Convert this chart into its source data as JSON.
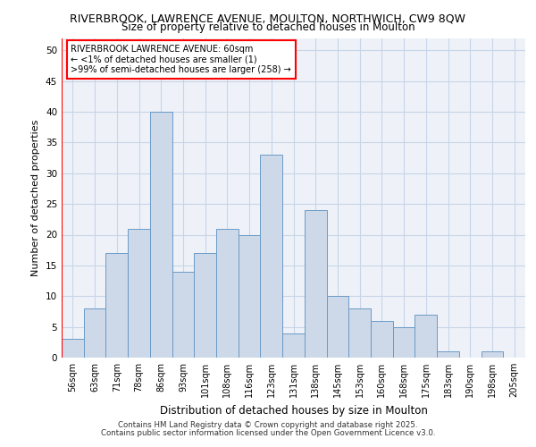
{
  "title_line1": "RIVERBROOK, LAWRENCE AVENUE, MOULTON, NORTHWICH, CW9 8QW",
  "title_line2": "Size of property relative to detached houses in Moulton",
  "xlabel": "Distribution of detached houses by size in Moulton",
  "ylabel": "Number of detached properties",
  "categories": [
    "56sqm",
    "63sqm",
    "71sqm",
    "78sqm",
    "86sqm",
    "93sqm",
    "101sqm",
    "108sqm",
    "116sqm",
    "123sqm",
    "131sqm",
    "138sqm",
    "145sqm",
    "153sqm",
    "160sqm",
    "168sqm",
    "175sqm",
    "183sqm",
    "190sqm",
    "198sqm",
    "205sqm"
  ],
  "values": [
    3,
    8,
    17,
    21,
    40,
    14,
    17,
    21,
    20,
    33,
    4,
    24,
    10,
    8,
    6,
    5,
    7,
    1,
    0,
    1,
    0
  ],
  "bar_color_fill": "#cdd8e8",
  "bar_color_edge": "#6b9bc7",
  "ylim": [
    0,
    52
  ],
  "yticks": [
    0,
    5,
    10,
    15,
    20,
    25,
    30,
    35,
    40,
    45,
    50
  ],
  "grid_color": "#c8d4e8",
  "background_color": "#eef2f8",
  "annotation_title": "RIVERBROOK LAWRENCE AVENUE: 60sqm",
  "annotation_line1": "← <1% of detached houses are smaller (1)",
  "annotation_line2": ">99% of semi-detached houses are larger (258) →",
  "footer_line1": "Contains HM Land Registry data © Crown copyright and database right 2025.",
  "footer_line2": "Contains public sector information licensed under the Open Government Licence v3.0."
}
